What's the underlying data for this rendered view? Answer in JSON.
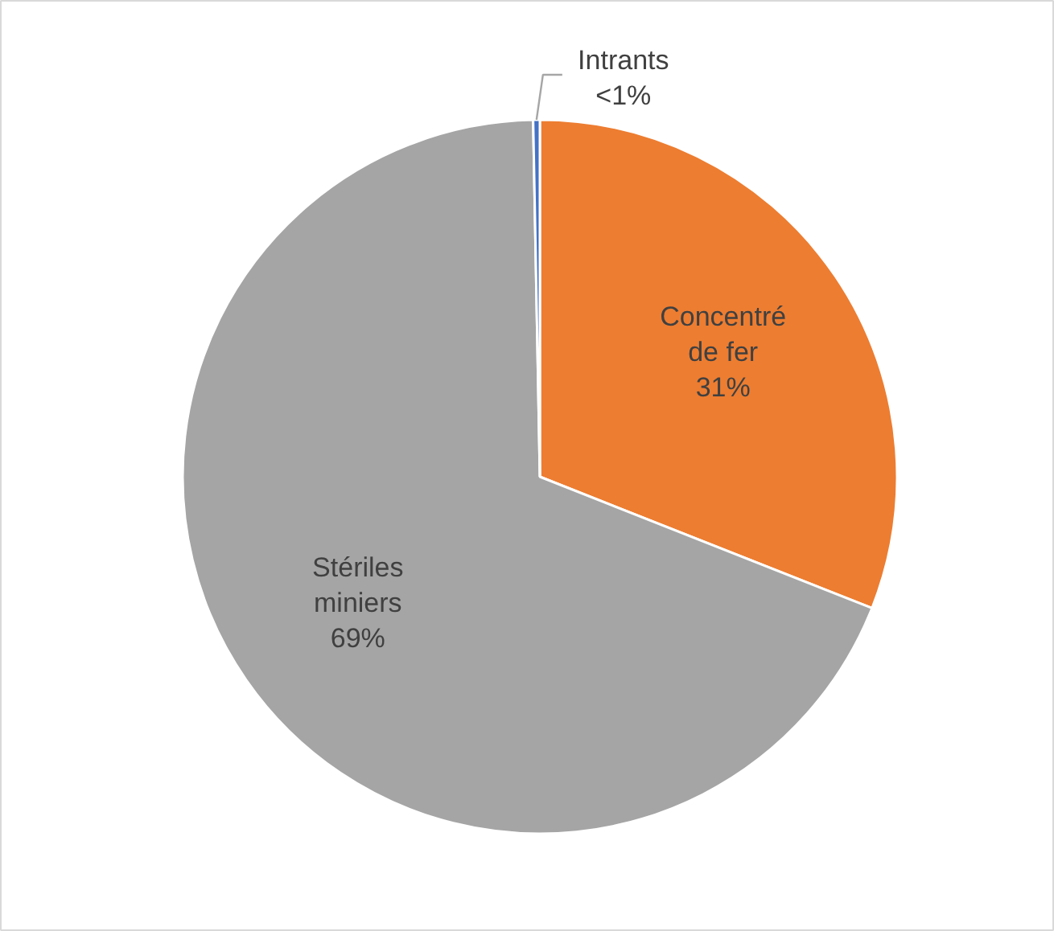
{
  "chart_data": {
    "type": "pie",
    "categories": [
      "Concentré de fer",
      "Stériles miniers",
      "Intrants"
    ],
    "values": [
      31,
      68.7,
      0.3
    ],
    "colors": [
      "#ed7d31",
      "#a5a5a5",
      "#4472c4"
    ],
    "value_labels": [
      "31%",
      "69%",
      "<1%"
    ]
  }
}
